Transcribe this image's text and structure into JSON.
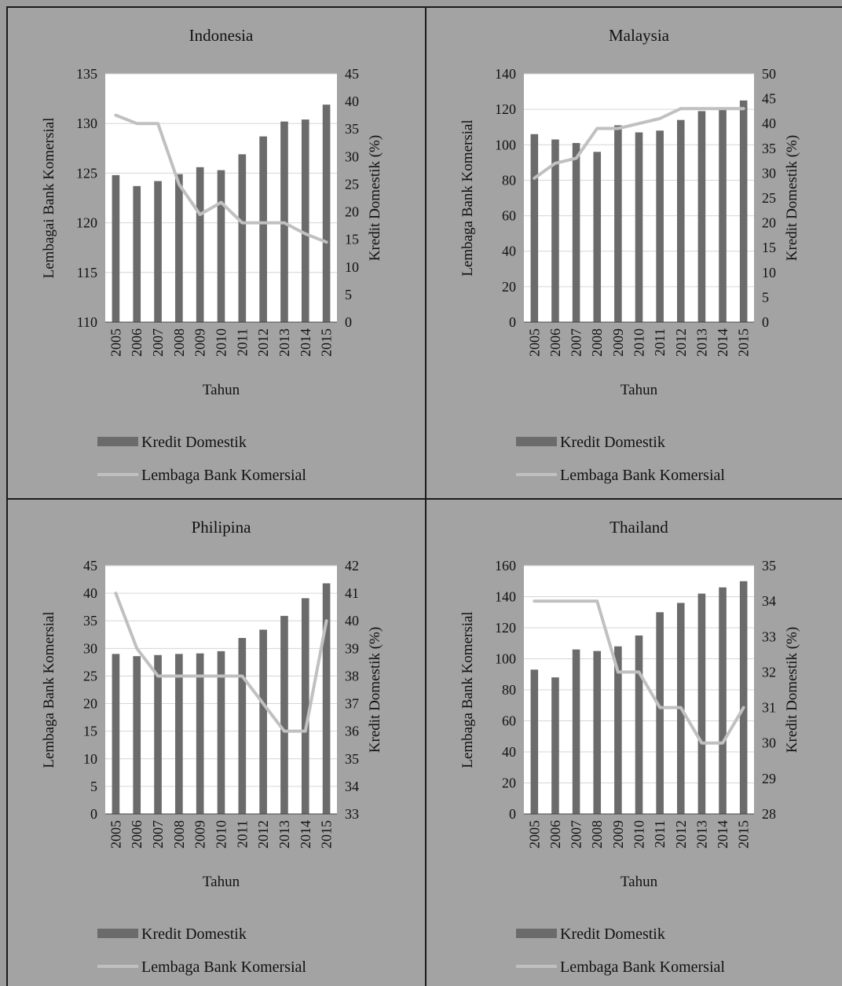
{
  "chart_data": [
    {
      "type": "bar",
      "title": "Indonesia",
      "xlabel": "Tahun",
      "ylabel": "Lembagai Bank Komersial",
      "y2label": "Kredit Domestik (%)",
      "categories": [
        "2005",
        "2006",
        "2007",
        "2008",
        "2009",
        "2010",
        "2011",
        "2012",
        "2013",
        "2014",
        "2015"
      ],
      "ylim": [
        110,
        135
      ],
      "yticks": [
        110,
        115,
        120,
        125,
        130,
        135
      ],
      "y2lim": [
        0,
        45
      ],
      "y2ticks": [
        0,
        5,
        10,
        15,
        20,
        25,
        30,
        35,
        40,
        45
      ],
      "series": [
        {
          "name": "Kredit Domestik",
          "type": "bar",
          "axis": "left",
          "color": "#6b6b6b",
          "values": [
            124.8,
            123.7,
            124.2,
            124.9,
            125.6,
            125.3,
            126.9,
            128.7,
            130.2,
            130.4,
            131.9
          ]
        },
        {
          "name": "Lembaga Bank Komersial",
          "type": "line",
          "axis": "right",
          "color": "#c0c0c0",
          "values": [
            37.5,
            36.0,
            36.0,
            25.0,
            19.5,
            21.7,
            18.0,
            18.0,
            18.0,
            16.0,
            14.5
          ]
        }
      ],
      "legend_position": "bottom",
      "grid": true
    },
    {
      "type": "bar",
      "title": "Malaysia",
      "xlabel": "Tahun",
      "ylabel": "Lembaga Bank Komersial",
      "y2label": "Kredit Domestik (%)",
      "categories": [
        "2005",
        "2006",
        "2007",
        "2008",
        "2009",
        "2010",
        "2011",
        "2012",
        "2013",
        "2014",
        "2015"
      ],
      "ylim": [
        0,
        140
      ],
      "yticks": [
        0,
        20,
        40,
        60,
        80,
        100,
        120,
        140
      ],
      "y2lim": [
        0,
        50
      ],
      "y2ticks": [
        0,
        5,
        10,
        15,
        20,
        25,
        30,
        35,
        40,
        45,
        50
      ],
      "series": [
        {
          "name": "Kredit Domestik",
          "type": "bar",
          "axis": "left",
          "color": "#6b6b6b",
          "values": [
            106,
            103,
            101,
            96,
            111,
            107,
            108,
            114,
            119,
            120,
            125
          ]
        },
        {
          "name": "Lembaga Bank Komersial",
          "type": "line",
          "axis": "right",
          "color": "#c0c0c0",
          "values": [
            29,
            32,
            33,
            39,
            39,
            40,
            41,
            43,
            43,
            43,
            43
          ]
        }
      ],
      "legend_position": "bottom",
      "grid": true
    },
    {
      "type": "bar",
      "title": "Philipina",
      "xlabel": "Tahun",
      "ylabel": "Lembaga Bank Komersial",
      "y2label": "Kredit Domestik (%)",
      "categories": [
        "2005",
        "2006",
        "2007",
        "2008",
        "2009",
        "2010",
        "2011",
        "2012",
        "2013",
        "2014",
        "2015"
      ],
      "ylim": [
        0,
        45
      ],
      "yticks": [
        0,
        5,
        10,
        15,
        20,
        25,
        30,
        35,
        40,
        45
      ],
      "y2lim": [
        33,
        42
      ],
      "y2ticks": [
        33,
        34,
        35,
        36,
        37,
        38,
        39,
        40,
        41,
        42
      ],
      "series": [
        {
          "name": "Kredit Domestik",
          "type": "bar",
          "axis": "left",
          "color": "#6b6b6b",
          "values": [
            29.0,
            28.6,
            28.8,
            29.0,
            29.1,
            29.5,
            31.9,
            33.4,
            35.9,
            39.1,
            41.8
          ]
        },
        {
          "name": "Lembaga Bank Komersial",
          "type": "line",
          "axis": "right",
          "color": "#c0c0c0",
          "values": [
            41,
            39,
            38,
            38,
            38,
            38,
            38,
            37,
            36,
            36,
            40
          ]
        }
      ],
      "legend_position": "bottom",
      "grid": true
    },
    {
      "type": "bar",
      "title": "Thailand",
      "xlabel": "Tahun",
      "ylabel": "Lembaga Bank Komersial",
      "y2label": "Kredit Domestik (%)",
      "categories": [
        "2005",
        "2006",
        "2007",
        "2008",
        "2009",
        "2010",
        "2011",
        "2012",
        "2013",
        "2014",
        "2015"
      ],
      "ylim": [
        0,
        160
      ],
      "yticks": [
        0,
        20,
        40,
        60,
        80,
        100,
        120,
        140,
        160
      ],
      "y2lim": [
        28,
        35
      ],
      "y2ticks": [
        28,
        29,
        30,
        31,
        32,
        33,
        34,
        35
      ],
      "series": [
        {
          "name": "Kredit Domestik",
          "type": "bar",
          "axis": "left",
          "color": "#6b6b6b",
          "values": [
            93,
            88,
            106,
            105,
            108,
            115,
            130,
            136,
            142,
            146,
            150
          ]
        },
        {
          "name": "Lembaga Bank Komersial",
          "type": "line",
          "axis": "right",
          "color": "#c0c0c0",
          "values": [
            34,
            34,
            34,
            34,
            32,
            32,
            31,
            31,
            30,
            30,
            31
          ]
        }
      ],
      "legend_position": "bottom",
      "grid": true
    }
  ]
}
